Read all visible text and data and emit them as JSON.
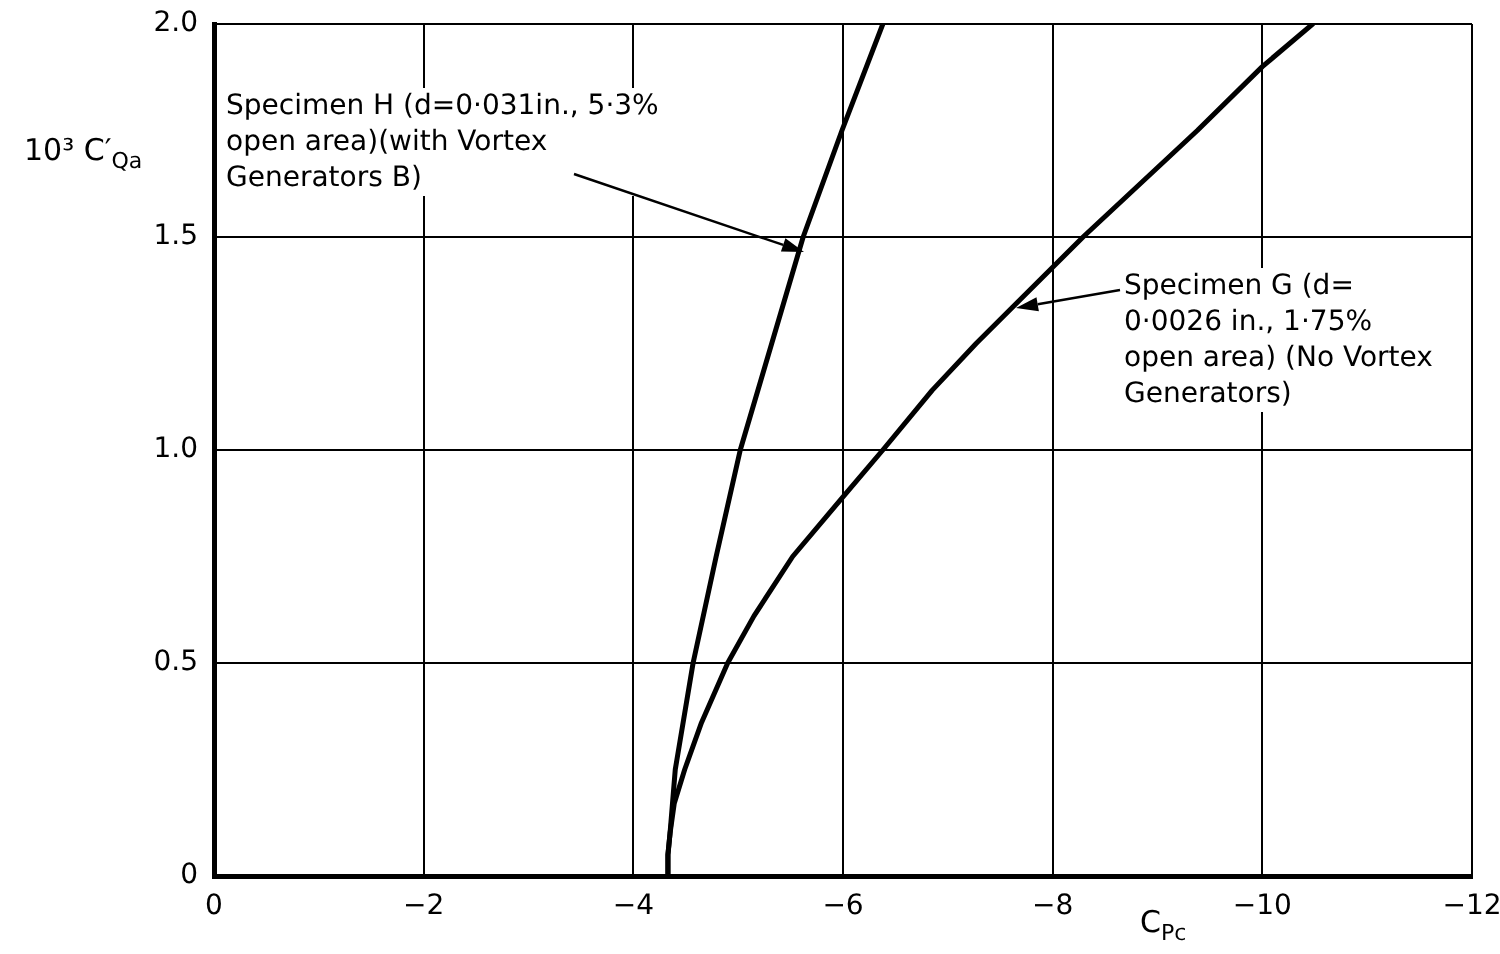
{
  "chart_data": {
    "type": "line",
    "xlabel": "C$_{Pc}$",
    "ylabel": "10³ C′$_{Qa}$",
    "xlim": [
      0,
      -12
    ],
    "ylim": [
      0,
      2
    ],
    "xticks": [
      0,
      {
        "value": -2,
        "label": "−2"
      },
      {
        "value": -4,
        "label": "−4"
      },
      {
        "value": -6,
        "label": "−6"
      },
      {
        "value": -8,
        "label": "−8"
      },
      {
        "value": -10,
        "label": "−10"
      },
      {
        "value": -12,
        "label": "−12"
      }
    ],
    "yticks": [
      0,
      0.5,
      {
        "value": 1,
        "label": "1.0"
      },
      1.5,
      {
        "value": 2,
        "label": "2.0"
      }
    ],
    "grid": true,
    "series": [
      {
        "color": "#000000",
        "x": [
          -4.32,
          -4.33,
          -4.35,
          -4.4,
          -4.57,
          -4.79,
          -5.02,
          -5.32,
          -5.62,
          -5.99,
          -6.38
        ],
        "values": [
          0,
          0.05,
          0.1,
          0.25,
          0.5,
          0.75,
          1.0,
          1.25,
          1.5,
          1.75,
          2.0
        ]
      },
      {
        "color": "#000000",
        "x": [
          -4.32,
          -4.33,
          -4.35,
          -4.39,
          -4.49,
          -4.65,
          -4.9,
          -5.15,
          -5.52,
          -6.0,
          -6.38,
          -6.85,
          -7.27,
          -8.29,
          -9.38,
          -10.0,
          -10.48
        ],
        "values": [
          0,
          0.05,
          0.1,
          0.17,
          0.25,
          0.36,
          0.5,
          0.61,
          0.75,
          0.89,
          1.0,
          1.14,
          1.25,
          1.5,
          1.75,
          1.9,
          2.0
        ]
      }
    ],
    "annotations": [
      "Specimen H (d=0·031in., 5·3% open area)(with Vortex Generators B)",
      "Specimen G (d= 0·0026 in., 1·75% open area) (No Vortex Generators)"
    ]
  }
}
